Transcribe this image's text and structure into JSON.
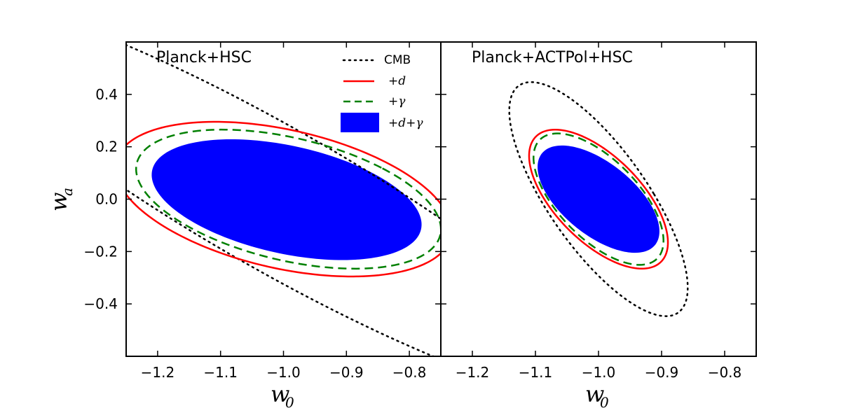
{
  "chart_data": [
    {
      "type": "contour",
      "title": "Planck+HSC",
      "xlabel": "w",
      "xlabel_sub": "0",
      "ylabel": "w",
      "ylabel_sub": "a",
      "xlim": [
        -1.25,
        -0.75
      ],
      "ylim": [
        -0.6,
        0.6
      ],
      "xticks": [
        -1.2,
        -1.1,
        -1.0,
        -0.9,
        -0.8
      ],
      "xtick_labels": [
        "−1.2",
        "−1.1",
        "−1.0",
        "−0.9",
        "−0.8"
      ],
      "yticks": [
        -0.4,
        -0.2,
        0.0,
        0.2,
        0.4
      ],
      "ytick_labels": [
        "−0.4",
        "−0.2",
        "0.0",
        "0.2",
        "0.4"
      ],
      "series": [
        {
          "name": "CMB",
          "style": "dotted",
          "color": "#000000",
          "center": [
            -1.012,
            0.0
          ],
          "semi_axes": [
            0.18,
            0.91
          ],
          "angle_deg": 34
        },
        {
          "name": "+d",
          "style": "solid",
          "color": "#ff0000",
          "center": [
            -1.0,
            0.0
          ],
          "semi_axes": [
            0.215,
            0.335
          ],
          "angle_deg": 38
        },
        {
          "name": "+γ",
          "style": "dashed",
          "color": "#008000",
          "center": [
            -0.992,
            0.0
          ],
          "semi_axes": [
            0.19,
            0.305
          ],
          "angle_deg": 39
        },
        {
          "name": "+d+γ",
          "style": "filled",
          "color": "#0000ff",
          "center": [
            -0.995,
            -0.002
          ],
          "semi_axes": [
            0.17,
            0.265
          ],
          "angle_deg": 40
        }
      ],
      "legend": [
        {
          "label": "CMB",
          "style": "dotted"
        },
        {
          "label": "+d",
          "style": "solid"
        },
        {
          "label": "+γ",
          "style": "dashed"
        },
        {
          "label": "+d+γ",
          "style": "filled"
        }
      ]
    },
    {
      "type": "contour",
      "title": "Planck+ACTPol+HSC",
      "xlabel": "w",
      "xlabel_sub": "0",
      "xlim": [
        -1.25,
        -0.75
      ],
      "ylim": [
        -0.6,
        0.6
      ],
      "xticks": [
        -1.2,
        -1.1,
        -1.0,
        -0.9,
        -0.8
      ],
      "xtick_labels": [
        "−1.2",
        "−1.1",
        "−1.0",
        "−0.9",
        "−0.8"
      ],
      "series": [
        {
          "name": "CMB",
          "style": "dotted",
          "color": "#000000",
          "center": [
            -1.0,
            0.0
          ],
          "semi_axes": [
            0.09,
            0.46
          ],
          "angle_deg": 14
        },
        {
          "name": "+d",
          "style": "solid",
          "color": "#ff0000",
          "center": [
            -1.0,
            0.0
          ],
          "semi_axes": [
            0.083,
            0.275
          ],
          "angle_deg": 16
        },
        {
          "name": "+γ",
          "style": "dashed",
          "color": "#008000",
          "center": [
            -1.0,
            0.0
          ],
          "semi_axes": [
            0.077,
            0.26
          ],
          "angle_deg": 16
        },
        {
          "name": "+d+γ",
          "style": "filled",
          "color": "#0000ff",
          "center": [
            -1.0,
            0.0
          ],
          "semi_axes": [
            0.074,
            0.214
          ],
          "angle_deg": 18
        }
      ]
    }
  ]
}
